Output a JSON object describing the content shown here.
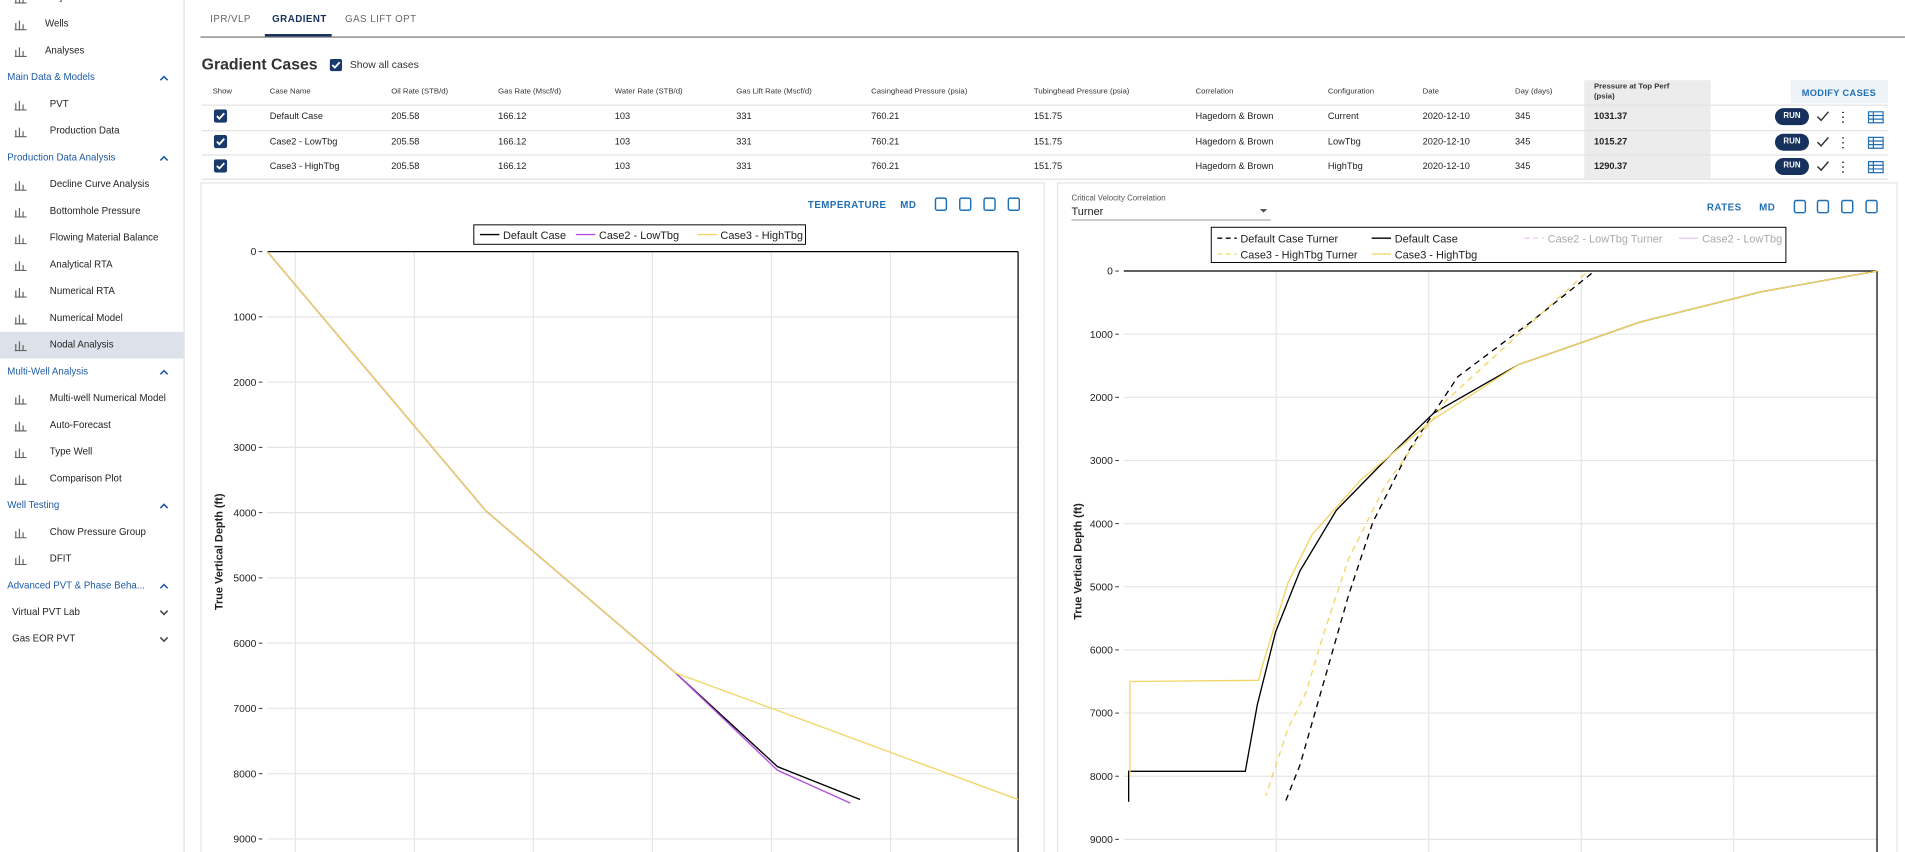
{
  "sidebar": [
    {
      "label": "Projects",
      "kind": "top"
    },
    {
      "label": "Wells",
      "kind": "top"
    },
    {
      "label": "Analyses",
      "kind": "top"
    },
    {
      "label": "Main Data & Models",
      "kind": "section"
    },
    {
      "label": "PVT",
      "kind": "item"
    },
    {
      "label": "Production Data",
      "kind": "item"
    },
    {
      "label": "Production Data Analysis",
      "kind": "section"
    },
    {
      "label": "Decline Curve Analysis",
      "kind": "item"
    },
    {
      "label": "Bottomhole Pressure",
      "kind": "item"
    },
    {
      "label": "Flowing Material Balance",
      "kind": "item"
    },
    {
      "label": "Analytical RTA",
      "kind": "item"
    },
    {
      "label": "Numerical RTA",
      "kind": "item"
    },
    {
      "label": "Numerical Model",
      "kind": "item"
    },
    {
      "label": "Nodal Analysis",
      "kind": "item",
      "selected": true
    },
    {
      "label": "Multi-Well Analysis",
      "kind": "section"
    },
    {
      "label": "Multi-well Numerical Model",
      "kind": "item"
    },
    {
      "label": "Auto-Forecast",
      "kind": "item"
    },
    {
      "label": "Type Well",
      "kind": "item"
    },
    {
      "label": "Comparison Plot",
      "kind": "item"
    },
    {
      "label": "Well Testing",
      "kind": "section"
    },
    {
      "label": "Chow Pressure Group",
      "kind": "item"
    },
    {
      "label": "DFIT",
      "kind": "item"
    },
    {
      "label": "Advanced PVT & Phase Beha...",
      "kind": "section"
    },
    {
      "label": "Virtual PVT Lab",
      "kind": "group"
    },
    {
      "label": "Gas EOR PVT",
      "kind": "group"
    }
  ],
  "tabs": {
    "items": [
      "IPR/VLP",
      "GRADIENT",
      "GAS LIFT OPT"
    ],
    "active": 1
  },
  "gradient_cases": {
    "title": "Gradient Cases",
    "show_all_label": "Show all cases",
    "show_all": true,
    "modify_button": "MODIFY CASES",
    "run_button": "RUN",
    "columns": [
      "Show",
      "Case Name",
      "Oil Rate (STB/d)",
      "Gas Rate (Mscf/d)",
      "Water Rate (STB/d)",
      "Gas Lift Rate (Mscf/d)",
      "Casinghead Pressure (psia)",
      "Tubinghead Pressure (psia)",
      "Correlation",
      "Configuration",
      "Date",
      "Day (days)",
      "Pressure at Top Perf (psia)"
    ],
    "rows": [
      {
        "show": true,
        "cells": [
          "Default Case",
          "205.58",
          "166.12",
          "103",
          "331",
          "760.21",
          "151.75",
          "Hagedorn & Brown",
          "Current",
          "2020-12-10",
          "345",
          "1031.37"
        ]
      },
      {
        "show": true,
        "cells": [
          "Case2 - LowTbg",
          "205.58",
          "166.12",
          "103",
          "331",
          "760.21",
          "151.75",
          "Hagedorn & Brown",
          "LowTbg",
          "2020-12-10",
          "345",
          "1015.27"
        ]
      },
      {
        "show": true,
        "cells": [
          "Case3 - HighTbg",
          "205.58",
          "166.12",
          "103",
          "331",
          "760.21",
          "151.75",
          "Hagedorn & Brown",
          "HighTbg",
          "2020-12-10",
          "345",
          "1290.37"
        ]
      }
    ]
  },
  "charts": [
    {
      "type": "line",
      "toolbar": [
        "TEMPERATURE",
        "MD"
      ],
      "y_label": "True Vertical Depth (ft)",
      "y_inverted": true,
      "ylim": [
        0,
        9200
      ],
      "yticks": [
        0,
        1000,
        2000,
        3000,
        4000,
        5000,
        6000,
        7000,
        8000,
        9000
      ],
      "xlim": [
        765,
        7072
      ],
      "xgrid": [
        1000,
        2000,
        3000,
        4000,
        5000,
        6000
      ],
      "grid": true,
      "series": [
        {
          "name": "Default Case",
          "color": "#000000",
          "dash": false,
          "x": [
            765,
            2602,
            4194,
            5051,
            5745
          ],
          "y": [
            0,
            3974,
            6455,
            7892,
            8396
          ]
        },
        {
          "name": "Case2 - LowTbg",
          "color": "#b44fe0",
          "dash": false,
          "x": [
            765,
            2602,
            4194,
            5051,
            5663
          ],
          "y": [
            0,
            3974,
            6455,
            7948,
            8451
          ]
        },
        {
          "name": "Case3 - HighTbg",
          "color": "#f2d563",
          "dash": false,
          "x": [
            765,
            2602,
            4194,
            7072
          ],
          "y": [
            0,
            3974,
            6455,
            8396
          ]
        }
      ]
    },
    {
      "type": "line",
      "toolbar": [
        "RATES",
        "MD"
      ],
      "selector": {
        "label": "Critical Velocity Correlation",
        "value": "Turner"
      },
      "y_label": "True Vertical Depth (ft)",
      "y_inverted": true,
      "ylim": [
        0,
        9200
      ],
      "yticks": [
        0,
        1000,
        2000,
        3000,
        4000,
        5000,
        6000,
        7000,
        8000,
        9000
      ],
      "xlim": [
        0,
        4940
      ],
      "xgrid": [
        1000,
        2000,
        3000,
        4000
      ],
      "grid": true,
      "series": [
        {
          "name": "Default Case Turner",
          "color": "#000000",
          "dash": true,
          "x": [
            3068,
            2669,
            2191,
            1873,
            1633,
            1474,
            1315,
            1155,
            1060
          ],
          "y": [
            38,
            808,
            1673,
            2827,
            3981,
            5135,
            6481,
            7827,
            8404
          ]
        },
        {
          "name": "Default Case",
          "color": "#000000",
          "dash": false,
          "x": [
            4940,
            4183,
            3386,
            2590,
            2032,
            1713,
            1394,
            1155,
            996,
            876,
            797,
            32,
            32
          ],
          "y": [
            0,
            327,
            808,
            1481,
            2250,
            3000,
            3788,
            4750,
            5712,
            6865,
            7923,
            7923,
            8404
          ]
        },
        {
          "name": "Case2 - LowTbg Turner",
          "color": "#b44fe0",
          "dash": true,
          "hidden": true,
          "x": [],
          "y": []
        },
        {
          "name": "Case2 - LowTbg",
          "color": "#b44fe0",
          "dash": false,
          "hidden": true,
          "x": [],
          "y": []
        },
        {
          "name": "Case3 - HighTbg Turner",
          "color": "#f2d563",
          "dash": true,
          "x": [
            3028,
            2590,
            2112,
            1713,
            1474,
            1315,
            1195,
            1076,
            932
          ],
          "y": [
            38,
            1000,
            2058,
            3404,
            4558,
            5712,
            6673,
            7250,
            8308
          ]
        },
        {
          "name": "Case3 - HighTbg",
          "color": "#f2d563",
          "dash": false,
          "x": [
            4940,
            4183,
            3386,
            2590,
            2032,
            1554,
            1235,
            1076,
            916,
            884,
            40,
            40
          ],
          "y": [
            0,
            327,
            808,
            1481,
            2346,
            3308,
            4173,
            4942,
            6192,
            6481,
            6500,
            8019
          ]
        }
      ]
    }
  ]
}
